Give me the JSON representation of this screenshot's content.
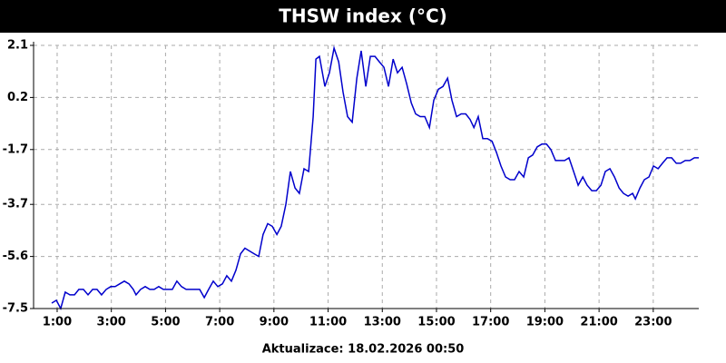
{
  "chart_data": {
    "type": "line",
    "title": "THSW index (°C)",
    "x": [
      0.8,
      0.97,
      1.13,
      1.3,
      1.47,
      1.64,
      1.8,
      1.97,
      2.14,
      2.31,
      2.47,
      2.64,
      2.81,
      2.98,
      3.14,
      3.31,
      3.48,
      3.65,
      3.81,
      3.91,
      4.08,
      4.25,
      4.42,
      4.58,
      4.75,
      4.92,
      5.09,
      5.25,
      5.42,
      5.59,
      5.76,
      5.92,
      6.09,
      6.26,
      6.43,
      6.59,
      6.76,
      6.93,
      7.1,
      7.26,
      7.43,
      7.6,
      7.77,
      7.93,
      8.1,
      8.27,
      8.44,
      8.6,
      8.77,
      8.94,
      9.11,
      9.27,
      9.44,
      9.61,
      9.78,
      9.94,
      10.11,
      10.28,
      10.45,
      10.55,
      10.68,
      10.88,
      11.05,
      11.22,
      11.39,
      11.55,
      11.72,
      11.89,
      12.06,
      12.22,
      12.39,
      12.56,
      12.73,
      12.89,
      13.06,
      13.23,
      13.4,
      13.56,
      13.73,
      13.9,
      14.07,
      14.23,
      14.4,
      14.57,
      14.74,
      14.9,
      15.07,
      15.24,
      15.41,
      15.57,
      15.74,
      15.91,
      16.08,
      16.24,
      16.38,
      16.54,
      16.71,
      16.88,
      17.05,
      17.21,
      17.38,
      17.55,
      17.72,
      17.88,
      18.05,
      18.22,
      18.39,
      18.55,
      18.72,
      18.89,
      19.06,
      19.22,
      19.39,
      19.56,
      19.73,
      19.89,
      20.06,
      20.23,
      20.4,
      20.56,
      20.73,
      20.9,
      21.07,
      21.23,
      21.4,
      21.57,
      21.74,
      21.9,
      22.07,
      22.24,
      22.34,
      22.51,
      22.67,
      22.84,
      23.01,
      23.18,
      23.34,
      23.51,
      23.68,
      23.85,
      24.01,
      24.18,
      24.35,
      24.52,
      24.68
    ],
    "series": [
      {
        "name": "THSW",
        "color": "#0000cc",
        "values": [
          -7.3,
          -7.2,
          -7.5,
          -6.9,
          -7.0,
          -7.0,
          -6.8,
          -6.8,
          -7.0,
          -6.8,
          -6.8,
          -7.0,
          -6.8,
          -6.7,
          -6.7,
          -6.6,
          -6.5,
          -6.6,
          -6.8,
          -7.0,
          -6.8,
          -6.7,
          -6.8,
          -6.8,
          -6.7,
          -6.8,
          -6.8,
          -6.8,
          -6.5,
          -6.7,
          -6.8,
          -6.8,
          -6.8,
          -6.8,
          -7.1,
          -6.8,
          -6.5,
          -6.7,
          -6.6,
          -6.3,
          -6.5,
          -6.1,
          -5.5,
          -5.3,
          -5.4,
          -5.5,
          -5.6,
          -4.8,
          -4.4,
          -4.5,
          -4.8,
          -4.5,
          -3.7,
          -2.5,
          -3.1,
          -3.3,
          -2.4,
          -2.5,
          -0.5,
          1.6,
          1.7,
          0.6,
          1.1,
          2.0,
          1.5,
          0.4,
          -0.5,
          -0.7,
          0.9,
          1.9,
          0.6,
          1.7,
          1.7,
          1.5,
          1.3,
          0.6,
          1.6,
          1.1,
          1.3,
          0.7,
          0.0,
          -0.4,
          -0.5,
          -0.5,
          -0.9,
          0.1,
          0.5,
          0.6,
          0.9,
          0.1,
          -0.5,
          -0.4,
          -0.4,
          -0.6,
          -0.9,
          -0.5,
          -1.3,
          -1.3,
          -1.4,
          -1.8,
          -2.3,
          -2.7,
          -2.8,
          -2.8,
          -2.5,
          -2.7,
          -2.0,
          -1.9,
          -1.6,
          -1.5,
          -1.5,
          -1.7,
          -2.1,
          -2.1,
          -2.1,
          -2.0,
          -2.5,
          -3.0,
          -2.7,
          -3.0,
          -3.2,
          -3.2,
          -3.0,
          -2.5,
          -2.4,
          -2.7,
          -3.1,
          -3.3,
          -3.4,
          -3.3,
          -3.5,
          -3.1,
          -2.8,
          -2.7,
          -2.3,
          -2.4,
          -2.2,
          -2.0,
          -2.0,
          -2.2,
          -2.2,
          -2.1,
          -2.1,
          -2.0,
          -2.0
        ]
      }
    ],
    "xlim": [
      0.13,
      24.68
    ],
    "xticks": [
      {
        "value": 1,
        "label": "1:00"
      },
      {
        "value": 3,
        "label": "3:00"
      },
      {
        "value": 5,
        "label": "5:00"
      },
      {
        "value": 7,
        "label": "7:00"
      },
      {
        "value": 9,
        "label": "9:00"
      },
      {
        "value": 11,
        "label": "11:00"
      },
      {
        "value": 13,
        "label": "13:00"
      },
      {
        "value": 15,
        "label": "15:00"
      },
      {
        "value": 17,
        "label": "17:00"
      },
      {
        "value": 19,
        "label": "19:00"
      },
      {
        "value": 21,
        "label": "21:00"
      },
      {
        "value": 23,
        "label": "23:00"
      }
    ],
    "ylim": [
      -7.5,
      2.1
    ],
    "yticks": [
      2.1,
      0.2,
      -1.7,
      -3.7,
      -5.6,
      -7.5
    ],
    "grid": true
  },
  "footer": "Aktualizace: 18.02.2026 00:50"
}
